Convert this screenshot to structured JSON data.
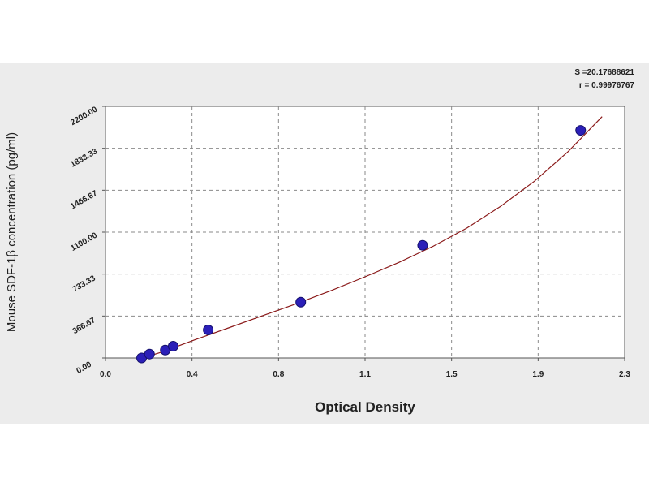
{
  "chart_data": {
    "type": "scatter",
    "xlabel": "Optical Density",
    "ylabel": "Mouse SDF-1β concentration (pg/ml)",
    "xlim": [
      0,
      2.3
    ],
    "ylim": [
      0,
      2200
    ],
    "x_ticks": [
      "0.0",
      "0.4",
      "0.8",
      "1.1",
      "1.5",
      "1.9",
      "2.3"
    ],
    "y_ticks": [
      "0.00",
      "366.67",
      "733.33",
      "1100.00",
      "1466.67",
      "1833.33",
      "2200.00"
    ],
    "grid": true,
    "fit_stats": [
      "S =20.17688621",
      "r = 0.99976767"
    ],
    "series": [
      {
        "x": [
          0.16,
          0.195,
          0.265,
          0.3,
          0.455,
          0.865,
          1.405,
          2.105
        ],
        "y": [
          0,
          34,
          69,
          103,
          245,
          488,
          985,
          1990
        ]
      }
    ],
    "fit_curve": {
      "x": [
        0.13,
        0.25,
        0.4,
        0.55,
        0.7,
        0.85,
        1.0,
        1.15,
        1.3,
        1.45,
        1.6,
        1.75,
        1.9,
        2.05,
        2.2
      ],
      "y": [
        -20,
        52,
        162,
        266,
        372,
        477,
        590,
        710,
        835,
        975,
        1135,
        1325,
        1545,
        1805,
        2110
      ]
    }
  },
  "colors": {
    "background": "#ececec",
    "plot_area": "#ffffff",
    "marker": "#2b1fb8",
    "curve": "#8b1a1a",
    "grid": "#8a8a8a"
  }
}
